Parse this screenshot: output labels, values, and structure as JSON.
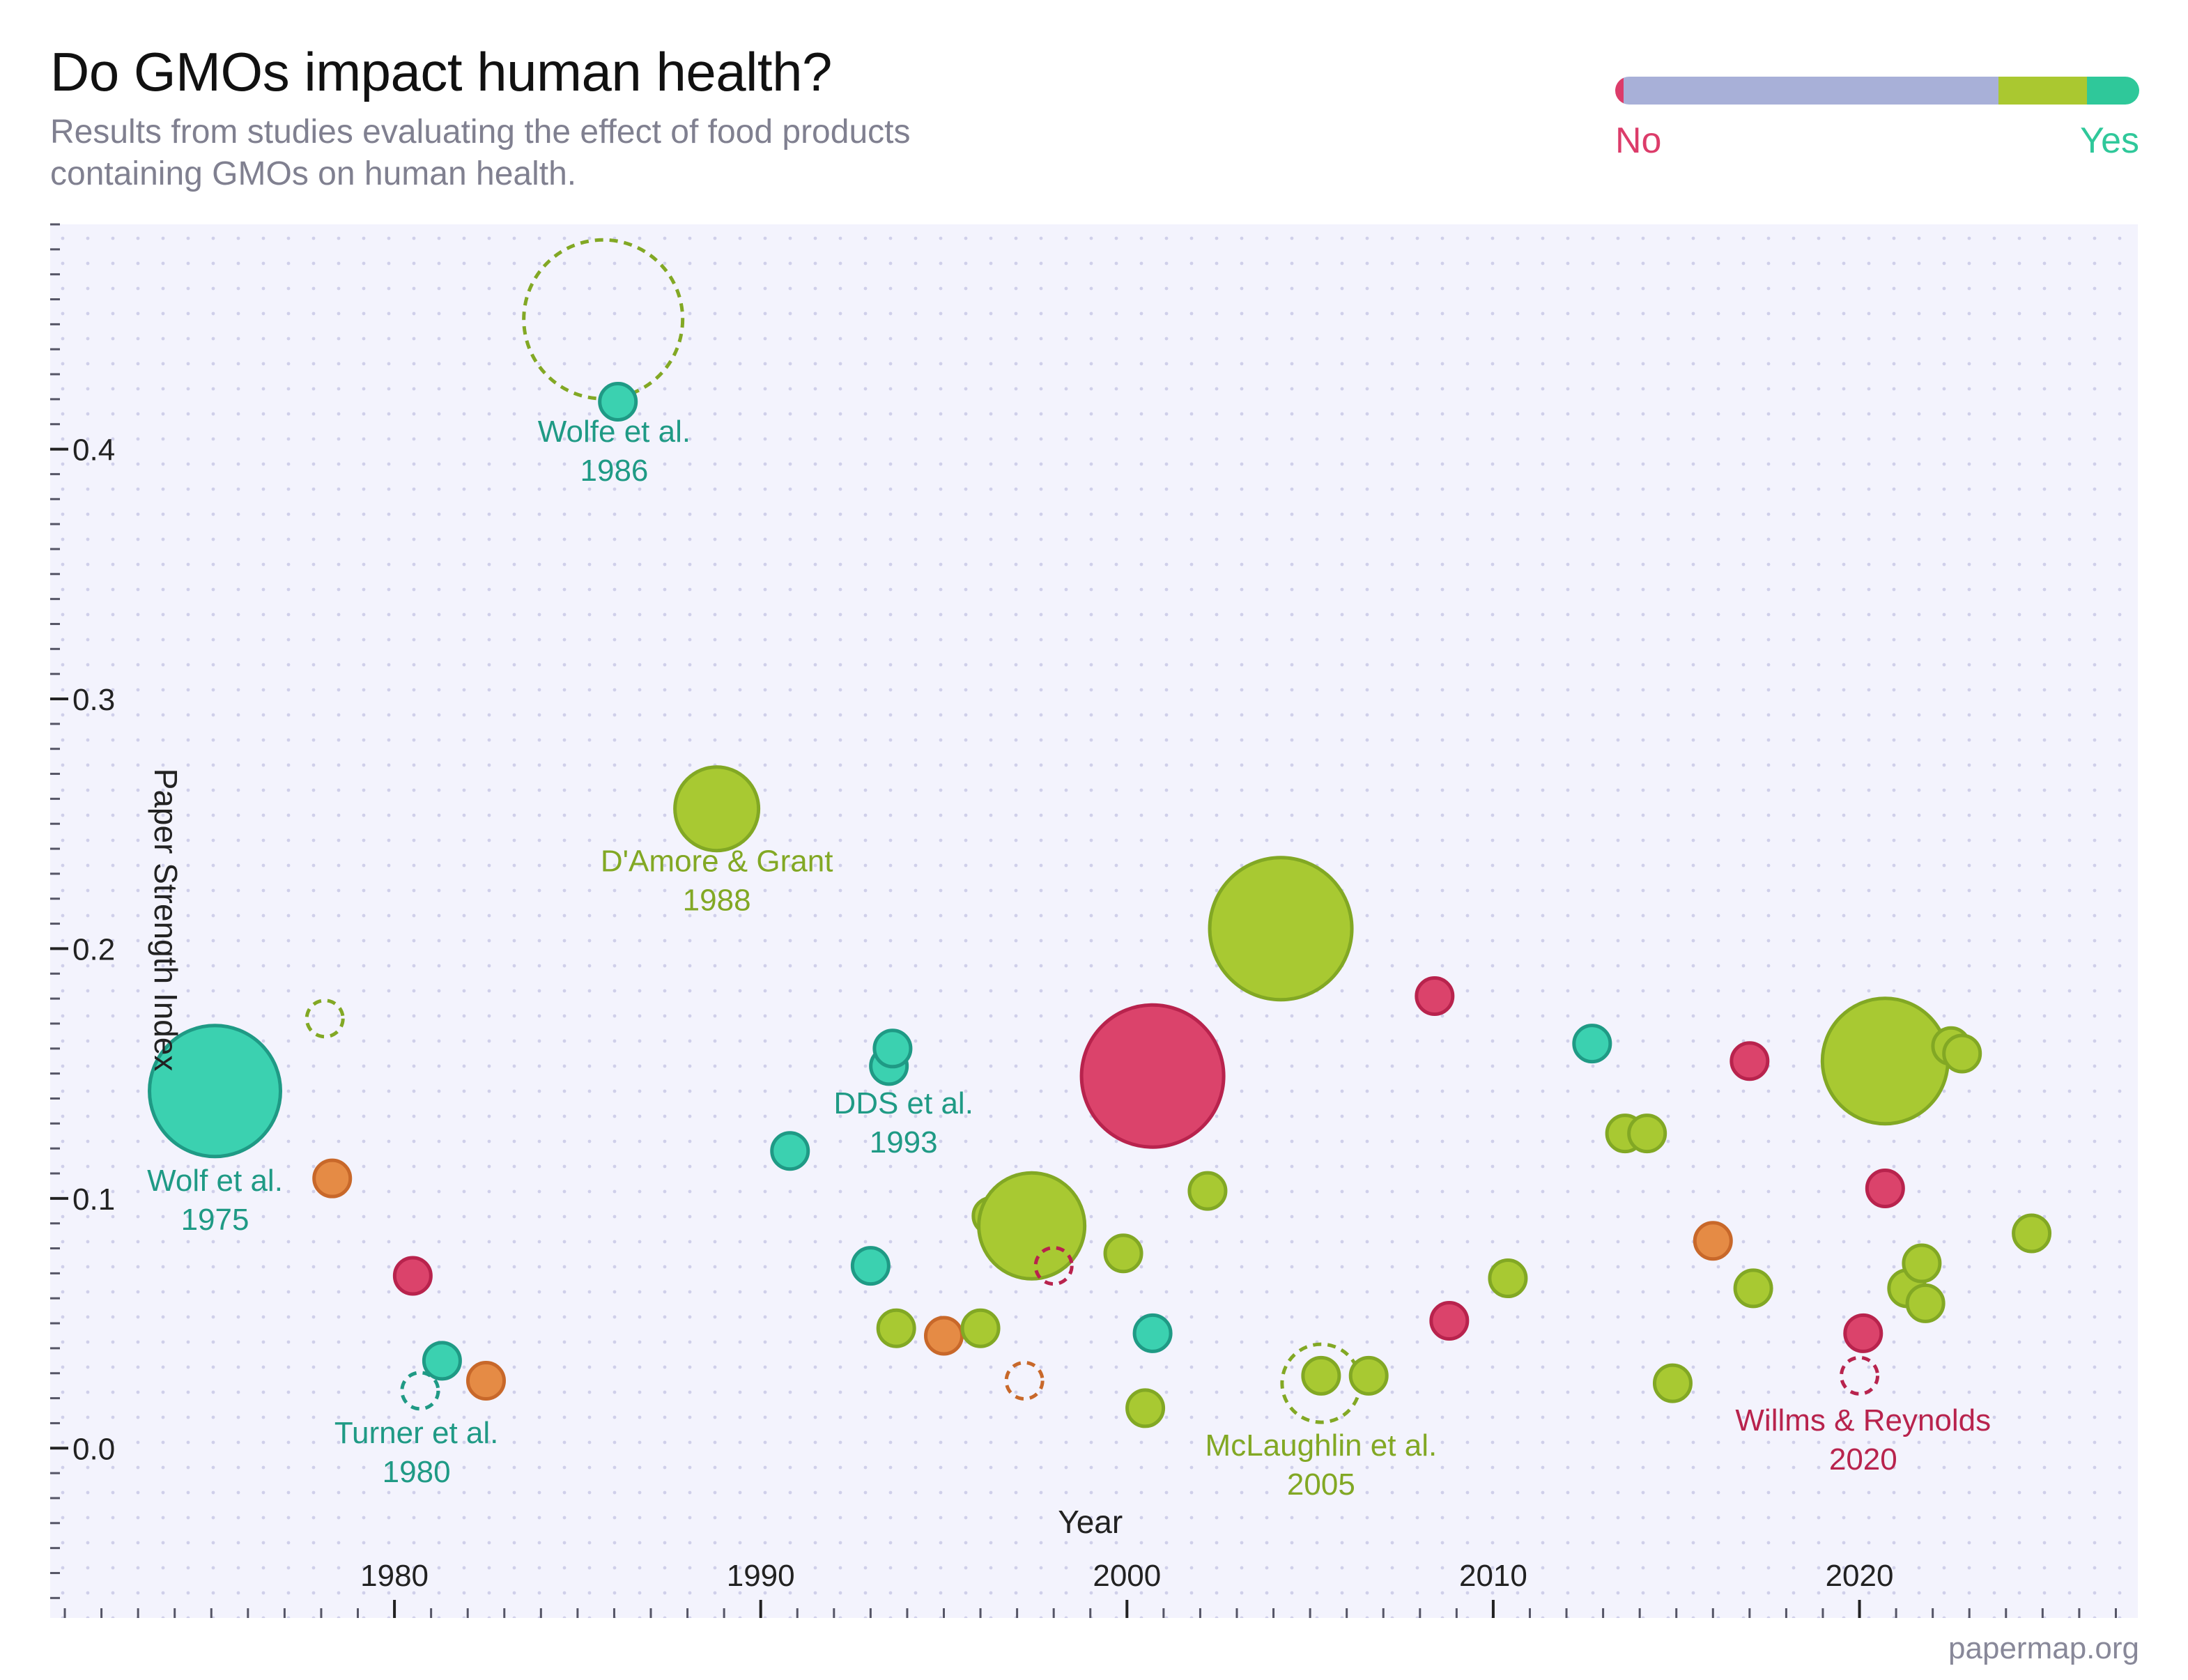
{
  "title": "Do GMOs impact human health?",
  "subtitle": "Results from studies evaluating the effect of food products containing GMOs on human health.",
  "legend": {
    "no_label": "No",
    "yes_label": "Yes",
    "segments": [
      {
        "color": "#dc3c6a",
        "fraction": 0.016
      },
      {
        "color": "#a8b0d8",
        "fraction": 0.716
      },
      {
        "color": "#aac830",
        "fraction": 0.168
      },
      {
        "color": "#2fc89a",
        "fraction": 0.1
      }
    ]
  },
  "colors": {
    "teal": "#3bd1b0",
    "teal_stroke": "#1f9a85",
    "green": "#a8c932",
    "green_stroke": "#82a824",
    "red": "#db436b",
    "red_stroke": "#b8234d",
    "orange": "#e58b45",
    "orange_stroke": "#c8682a",
    "plot_bg": "#f3f3fd",
    "grid_dot": "#cfcfea"
  },
  "footer": "papermap.org",
  "chart_data": {
    "type": "scatter",
    "xlabel": "Year",
    "ylabel": "Paper Strength Index",
    "xlim": [
      1970.6,
      2027.6
    ],
    "ylim": [
      -0.068,
      0.49
    ],
    "xticks": [
      1980,
      1990,
      2000,
      2010,
      2020
    ],
    "yticks": [
      0.0,
      0.1,
      0.2,
      0.3,
      0.4
    ],
    "ytick_labels": [
      "0.0",
      "0.1",
      "0.2",
      "0.3",
      "0.4"
    ],
    "points": [
      {
        "x": 1975.1,
        "y": 0.143,
        "r": 94,
        "color": "teal"
      },
      {
        "x": 1978.1,
        "y": 0.172,
        "r": 26,
        "color": "green",
        "dashed": true
      },
      {
        "x": 1978.3,
        "y": 0.108,
        "r": 26,
        "color": "orange"
      },
      {
        "x": 1980.5,
        "y": 0.069,
        "r": 26,
        "color": "red"
      },
      {
        "x": 1980.7,
        "y": 0.023,
        "r": 26,
        "color": "teal",
        "dashed": true
      },
      {
        "x": 1981.3,
        "y": 0.035,
        "r": 26,
        "color": "teal"
      },
      {
        "x": 1982.5,
        "y": 0.027,
        "r": 26,
        "color": "orange"
      },
      {
        "x": 1985.7,
        "y": 0.452,
        "r": 114,
        "color": "green",
        "dashed": true
      },
      {
        "x": 1986.1,
        "y": 0.419,
        "r": 26,
        "color": "teal"
      },
      {
        "x": 1988.8,
        "y": 0.256,
        "r": 60,
        "color": "green"
      },
      {
        "x": 1990.8,
        "y": 0.119,
        "r": 26,
        "color": "teal"
      },
      {
        "x": 1993.0,
        "y": 0.073,
        "r": 26,
        "color": "teal"
      },
      {
        "x": 1993.5,
        "y": 0.153,
        "r": 26,
        "color": "teal"
      },
      {
        "x": 1993.6,
        "y": 0.16,
        "r": 26,
        "color": "teal"
      },
      {
        "x": 1993.7,
        "y": 0.048,
        "r": 26,
        "color": "green"
      },
      {
        "x": 1995.0,
        "y": 0.045,
        "r": 26,
        "color": "orange"
      },
      {
        "x": 1996.0,
        "y": 0.048,
        "r": 26,
        "color": "green"
      },
      {
        "x": 1996.3,
        "y": 0.093,
        "r": 26,
        "color": "green"
      },
      {
        "x": 1997.2,
        "y": 0.027,
        "r": 26,
        "color": "orange",
        "dashed": true
      },
      {
        "x": 1997.4,
        "y": 0.089,
        "r": 76,
        "color": "green"
      },
      {
        "x": 1998.0,
        "y": 0.073,
        "r": 26,
        "color": "red",
        "dashed": true
      },
      {
        "x": 1999.9,
        "y": 0.078,
        "r": 26,
        "color": "green"
      },
      {
        "x": 2000.5,
        "y": 0.016,
        "r": 26,
        "color": "green"
      },
      {
        "x": 2000.7,
        "y": 0.046,
        "r": 26,
        "color": "teal"
      },
      {
        "x": 2000.7,
        "y": 0.149,
        "r": 102,
        "color": "red"
      },
      {
        "x": 2002.2,
        "y": 0.103,
        "r": 26,
        "color": "green"
      },
      {
        "x": 2004.2,
        "y": 0.208,
        "r": 102,
        "color": "green"
      },
      {
        "x": 2005.3,
        "y": 0.026,
        "r": 56,
        "color": "green",
        "dashed": true
      },
      {
        "x": 2005.3,
        "y": 0.029,
        "r": 26,
        "color": "green"
      },
      {
        "x": 2006.6,
        "y": 0.029,
        "r": 26,
        "color": "green"
      },
      {
        "x": 2008.4,
        "y": 0.181,
        "r": 26,
        "color": "red"
      },
      {
        "x": 2008.8,
        "y": 0.051,
        "r": 26,
        "color": "red"
      },
      {
        "x": 2010.4,
        "y": 0.068,
        "r": 26,
        "color": "green"
      },
      {
        "x": 2012.7,
        "y": 0.162,
        "r": 26,
        "color": "teal"
      },
      {
        "x": 2013.6,
        "y": 0.126,
        "r": 26,
        "color": "green"
      },
      {
        "x": 2014.2,
        "y": 0.126,
        "r": 26,
        "color": "green"
      },
      {
        "x": 2014.9,
        "y": 0.026,
        "r": 26,
        "color": "green"
      },
      {
        "x": 2016.0,
        "y": 0.083,
        "r": 26,
        "color": "orange"
      },
      {
        "x": 2017.0,
        "y": 0.155,
        "r": 26,
        "color": "red"
      },
      {
        "x": 2017.1,
        "y": 0.064,
        "r": 26,
        "color": "green"
      },
      {
        "x": 2020.0,
        "y": 0.029,
        "r": 26,
        "color": "red",
        "dashed": true
      },
      {
        "x": 2020.1,
        "y": 0.046,
        "r": 26,
        "color": "red"
      },
      {
        "x": 2020.7,
        "y": 0.155,
        "r": 90,
        "color": "green"
      },
      {
        "x": 2020.7,
        "y": 0.104,
        "r": 26,
        "color": "red"
      },
      {
        "x": 2021.3,
        "y": 0.064,
        "r": 26,
        "color": "green"
      },
      {
        "x": 2021.7,
        "y": 0.074,
        "r": 26,
        "color": "green"
      },
      {
        "x": 2021.8,
        "y": 0.058,
        "r": 26,
        "color": "green"
      },
      {
        "x": 2022.5,
        "y": 0.161,
        "r": 26,
        "color": "green"
      },
      {
        "x": 2022.8,
        "y": 0.158,
        "r": 26,
        "color": "green"
      },
      {
        "x": 2024.7,
        "y": 0.086,
        "r": 26,
        "color": "green"
      }
    ],
    "annotations": [
      {
        "name": "Wolfe et al.",
        "year": "1986",
        "x": 1986.0,
        "y": 0.403,
        "color": "teal_stroke"
      },
      {
        "name": "D'Amore & Grant",
        "year": "1988",
        "x": 1988.8,
        "y": 0.231,
        "color": "green_stroke"
      },
      {
        "name": "DDS et al.",
        "year": "1993",
        "x": 1993.9,
        "y": 0.134,
        "color": "teal_stroke"
      },
      {
        "name": "Wolf et al.",
        "year": "1975",
        "x": 1975.1,
        "y": 0.103,
        "color": "teal_stroke"
      },
      {
        "name": "Turner et al.",
        "year": "1980",
        "x": 1980.6,
        "y": 0.002,
        "color": "teal_stroke"
      },
      {
        "name": "McLaughlin et al.",
        "year": "2005",
        "x": 2005.3,
        "y": -0.003,
        "color": "green_stroke"
      },
      {
        "name": "Willms & Reynolds",
        "year": "2020",
        "x": 2020.1,
        "y": 0.007,
        "color": "red_stroke"
      }
    ]
  }
}
